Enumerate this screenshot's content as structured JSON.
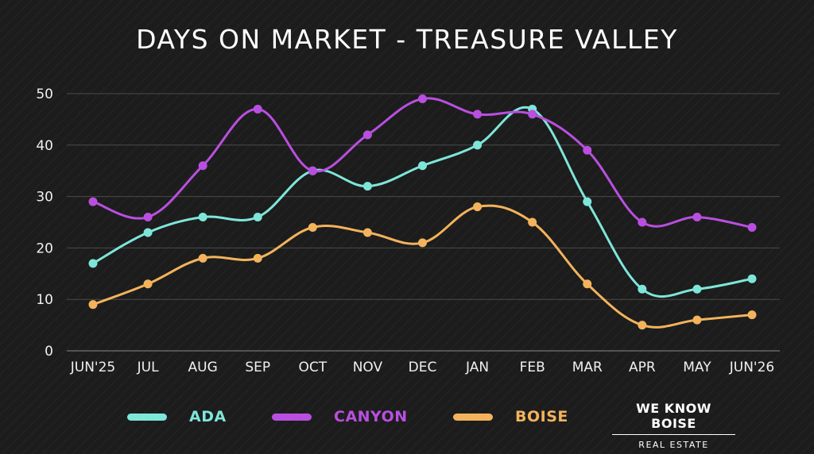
{
  "chart_data": {
    "type": "line",
    "title": "DAYS ON MARKET - TREASURE VALLEY",
    "categories": [
      "JUN'25",
      "JUL",
      "AUG",
      "SEP",
      "OCT",
      "NOV",
      "DEC",
      "JAN",
      "FEB",
      "MAR",
      "APR",
      "MAY",
      "JUN'26"
    ],
    "ylim": [
      0,
      50
    ],
    "yticks": [
      0,
      10,
      20,
      30,
      40,
      50
    ],
    "grid": true,
    "legend_position": "bottom",
    "series": [
      {
        "name": "ADA",
        "color": "#7ee6d9",
        "values": [
          17,
          23,
          26,
          26,
          35,
          32,
          36,
          40,
          47,
          29,
          12,
          12,
          14
        ]
      },
      {
        "name": "CANYON",
        "color": "#b94fe0",
        "values": [
          29,
          26,
          36,
          47,
          35,
          42,
          49,
          46,
          46,
          39,
          25,
          26,
          24
        ]
      },
      {
        "name": "BOISE",
        "color": "#f3b35c",
        "values": [
          9,
          13,
          18,
          18,
          24,
          23,
          21,
          28,
          25,
          13,
          5,
          6,
          7
        ]
      }
    ]
  },
  "logo": {
    "main": "WE KNOW BOISE",
    "sub": "REAL ESTATE"
  }
}
